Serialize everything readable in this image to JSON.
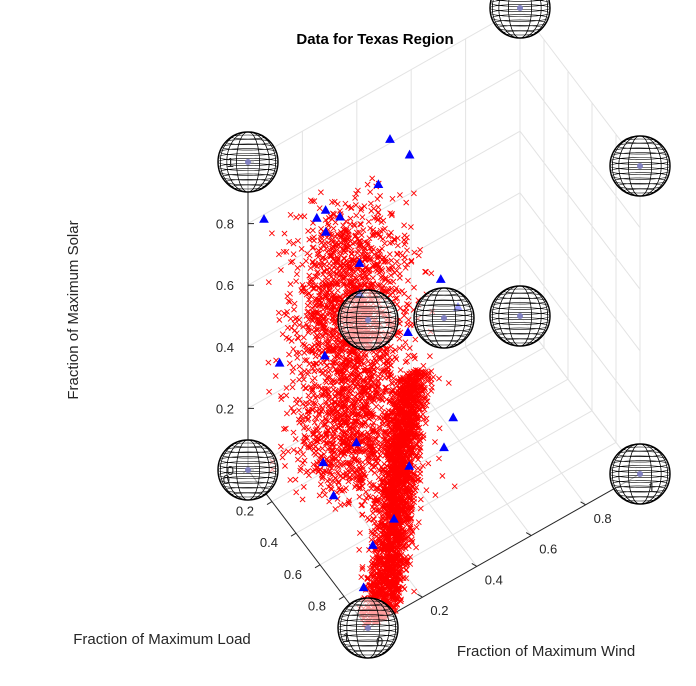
{
  "chart_data": {
    "type": "scatter3d",
    "title": "Data for Texas Region",
    "xlabel": "Fraction of Maximum Load",
    "ylabel": "Fraction of Maximum Wind",
    "zlabel": "Fraction of Maximum Solar",
    "xlim": [
      0,
      1
    ],
    "ylim": [
      0,
      1
    ],
    "zlim": [
      0,
      1
    ],
    "x_ticks": [
      "0",
      "0.2",
      "0.4",
      "0.6",
      "0.8",
      "1"
    ],
    "y_ticks": [
      "0",
      "0.2",
      "0.4",
      "0.6",
      "0.8",
      "1"
    ],
    "z_ticks": [
      "0",
      "0.2",
      "0.4",
      "0.6",
      "0.8",
      "1"
    ],
    "grid": true,
    "colors": {
      "observations": "#ff0000",
      "selected": "#0000ff",
      "sphere_edge": "#000000"
    },
    "markers": {
      "observations": "x",
      "selected": "triangle"
    },
    "observations": {
      "distribution": "dense point cloud: solar values spread 0 to 0.85 over low-to-mid load and wind, plus a dense band at solar near 0 spanning load 0 to 1 and wind 0 to 0.7",
      "sample_points": [
        [
          0.7,
          0.1,
          0.05
        ],
        [
          0.55,
          0.35,
          0.02
        ],
        [
          0.35,
          0.55,
          0.04
        ],
        [
          0.2,
          0.65,
          0.06
        ],
        [
          0.8,
          0.2,
          0.03
        ],
        [
          0.6,
          0.05,
          0.3
        ],
        [
          0.45,
          0.25,
          0.5
        ],
        [
          0.3,
          0.1,
          0.7
        ],
        [
          0.15,
          0.3,
          0.6
        ],
        [
          0.25,
          0.45,
          0.35
        ],
        [
          0.1,
          0.15,
          0.8
        ],
        [
          0.5,
          0.4,
          0.2
        ]
      ]
    },
    "selected_points": [
      [
        0.12,
        0.2,
        0.78
      ],
      [
        0.15,
        0.22,
        0.74
      ],
      [
        0.2,
        0.25,
        0.8
      ],
      [
        0.08,
        0.25,
        0.76
      ],
      [
        0.1,
        0.55,
        0.8
      ],
      [
        0.05,
        0.5,
        0.85
      ],
      [
        0.18,
        0.4,
        0.82
      ],
      [
        0.02,
        0.05,
        0.8
      ],
      [
        0.25,
        0.3,
        0.55
      ],
      [
        0.3,
        0.15,
        0.45
      ],
      [
        0.45,
        0.2,
        0.22
      ],
      [
        0.4,
        0.1,
        0.18
      ],
      [
        0.2,
        0.5,
        0.3
      ],
      [
        0.55,
        0.35,
        0.12
      ],
      [
        0.65,
        0.25,
        0.05
      ],
      [
        0.7,
        0.15,
        0.04
      ],
      [
        0.85,
        0.05,
        0.03
      ],
      [
        0.35,
        0.6,
        0.05
      ],
      [
        0.5,
        0.5,
        0.08
      ],
      [
        0.25,
        0.3,
        0.65
      ],
      [
        0.6,
        0.05,
        0.2
      ],
      [
        0.05,
        0.75,
        0.18
      ],
      [
        0.02,
        0.7,
        0.28
      ],
      [
        0.15,
        0.05,
        0.4
      ]
    ],
    "spheres": [
      [
        0,
        0,
        1
      ],
      [
        0,
        1,
        1
      ],
      [
        1,
        0,
        1
      ],
      [
        1,
        1,
        1
      ],
      [
        0,
        0,
        0
      ],
      [
        0,
        1,
        0
      ],
      [
        1,
        0,
        0
      ],
      [
        1,
        1,
        0
      ],
      [
        0.5,
        0.5,
        0.5
      ]
    ]
  }
}
